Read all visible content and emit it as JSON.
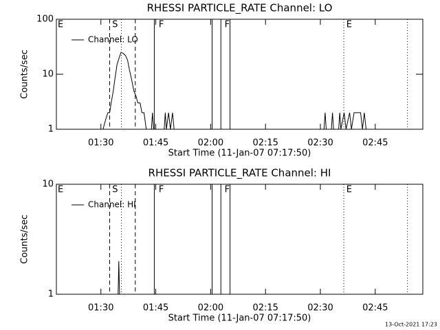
{
  "chart_data": [
    {
      "type": "line",
      "title": "RHESSI PARTICLE_RATE Channel: LO",
      "xlabel": "Start Time (11-Jan-07 07:17:50)",
      "ylabel": "Counts/sec",
      "xlim": [
        77.83,
        178
      ],
      "ylim": [
        1,
        100
      ],
      "log_y": true,
      "legend": "upper left",
      "xticks": [
        {
          "value": 90,
          "label": "01:30"
        },
        {
          "value": 105,
          "label": "01:45"
        },
        {
          "value": 120,
          "label": "02:00"
        },
        {
          "value": 135,
          "label": "02:15"
        },
        {
          "value": 150,
          "label": "02:30"
        },
        {
          "value": 165,
          "label": "02:45"
        }
      ],
      "yticks": [
        1,
        10,
        100
      ],
      "x": [
        90.6,
        91.3,
        91.9,
        92.4,
        92.8,
        93.4,
        93.8,
        94.4,
        95.0,
        95.5,
        96.1,
        96.7,
        97.3,
        97.8,
        98.4,
        99.0,
        99.6,
        100.1,
        100.7,
        101.2,
        101.8,
        102.4,
        103.8,
        104.1,
        104.4,
        107.3,
        107.6,
        107.9,
        108.5,
        109.0,
        109.6,
        110.0,
        151.0,
        151.3,
        151.6,
        153.0,
        153.3,
        153.6,
        155.0,
        155.3,
        155.6,
        156.5,
        157.0,
        158.0,
        158.5,
        159.2,
        161.0,
        161.5,
        162.0,
        162.5
      ],
      "series": [
        {
          "name": "Channel: LO",
          "color": "#000000",
          "values": [
            1,
            1.5,
            2,
            2,
            3,
            5,
            8,
            15,
            20,
            25,
            24,
            22,
            18,
            12,
            8,
            5,
            4,
            3,
            3,
            2,
            2,
            1,
            1,
            2,
            1,
            1,
            2,
            1,
            2,
            1,
            2,
            1,
            1,
            2,
            1,
            1,
            2,
            1,
            1,
            2,
            1,
            2,
            1,
            2,
            1,
            2,
            2,
            1,
            2,
            1
          ]
        }
      ],
      "vlines": [
        {
          "x": 92.4,
          "style": "dashed"
        },
        {
          "x": 95.6,
          "style": "dotted"
        },
        {
          "x": 99.4,
          "style": "dashed"
        },
        {
          "x": 104.6,
          "style": "solid"
        },
        {
          "x": 120.4,
          "style": "solid"
        },
        {
          "x": 122.8,
          "style": "solid"
        },
        {
          "x": 125.3,
          "style": "solid"
        },
        {
          "x": 156.4,
          "style": "dotted"
        },
        {
          "x": 173.8,
          "style": "dotted"
        }
      ],
      "annotations": [
        {
          "text": "E",
          "x": 78.2
        },
        {
          "text": "S",
          "x": 93.1
        },
        {
          "text": "F",
          "x": 105.8
        },
        {
          "text": "F",
          "x": 123.8
        },
        {
          "text": "E",
          "x": 157.1
        }
      ]
    },
    {
      "type": "line",
      "title": "RHESSI PARTICLE_RATE Channel: HI",
      "xlabel": "Start Time (11-Jan-07 07:17:50)",
      "ylabel": "Counts/sec",
      "xlim": [
        77.83,
        178
      ],
      "ylim": [
        1,
        10
      ],
      "log_y": true,
      "legend": "upper left",
      "xticks": [
        {
          "value": 90,
          "label": "01:30"
        },
        {
          "value": 105,
          "label": "01:45"
        },
        {
          "value": 120,
          "label": "02:00"
        },
        {
          "value": 135,
          "label": "02:15"
        },
        {
          "value": 150,
          "label": "02:30"
        },
        {
          "value": 165,
          "label": "02:45"
        }
      ],
      "yticks": [
        1,
        10
      ],
      "x": [
        94.7,
        94.9,
        95.1
      ],
      "series": [
        {
          "name": "Channel: HI",
          "color": "#000000",
          "values": [
            1,
            2,
            1
          ]
        }
      ],
      "vlines": [
        {
          "x": 92.4,
          "style": "dashed"
        },
        {
          "x": 95.6,
          "style": "dotted"
        },
        {
          "x": 99.4,
          "style": "dashed"
        },
        {
          "x": 104.6,
          "style": "solid"
        },
        {
          "x": 120.4,
          "style": "solid"
        },
        {
          "x": 122.8,
          "style": "solid"
        },
        {
          "x": 125.3,
          "style": "solid"
        },
        {
          "x": 156.4,
          "style": "dotted"
        },
        {
          "x": 173.8,
          "style": "dotted"
        }
      ],
      "annotations": [
        {
          "text": "E",
          "x": 78.2
        },
        {
          "text": "S",
          "x": 93.1
        },
        {
          "text": "F",
          "x": 105.8
        },
        {
          "text": "F",
          "x": 123.8
        },
        {
          "text": "E",
          "x": 157.1
        }
      ]
    }
  ],
  "footer": "13-Oct-2021 17:23"
}
